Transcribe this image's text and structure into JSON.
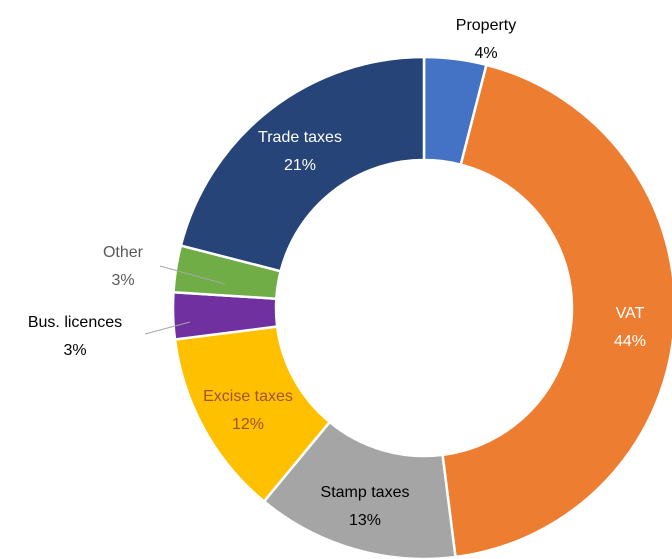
{
  "chart_data": {
    "type": "donut",
    "categories": [
      "Property",
      "VAT",
      "Stamp taxes",
      "Excise taxes",
      "Bus. licences",
      "Other",
      "Trade taxes"
    ],
    "values": [
      4,
      44,
      13,
      12,
      3,
      3,
      21
    ],
    "value_labels": [
      "4%",
      "44%",
      "13%",
      "12%",
      "3%",
      "3%",
      "21%"
    ],
    "colors": [
      "#4472c4",
      "#ed7d31",
      "#a5a5a5",
      "#ffc000",
      "#7030a0",
      "#70ad47",
      "#264478"
    ]
  }
}
